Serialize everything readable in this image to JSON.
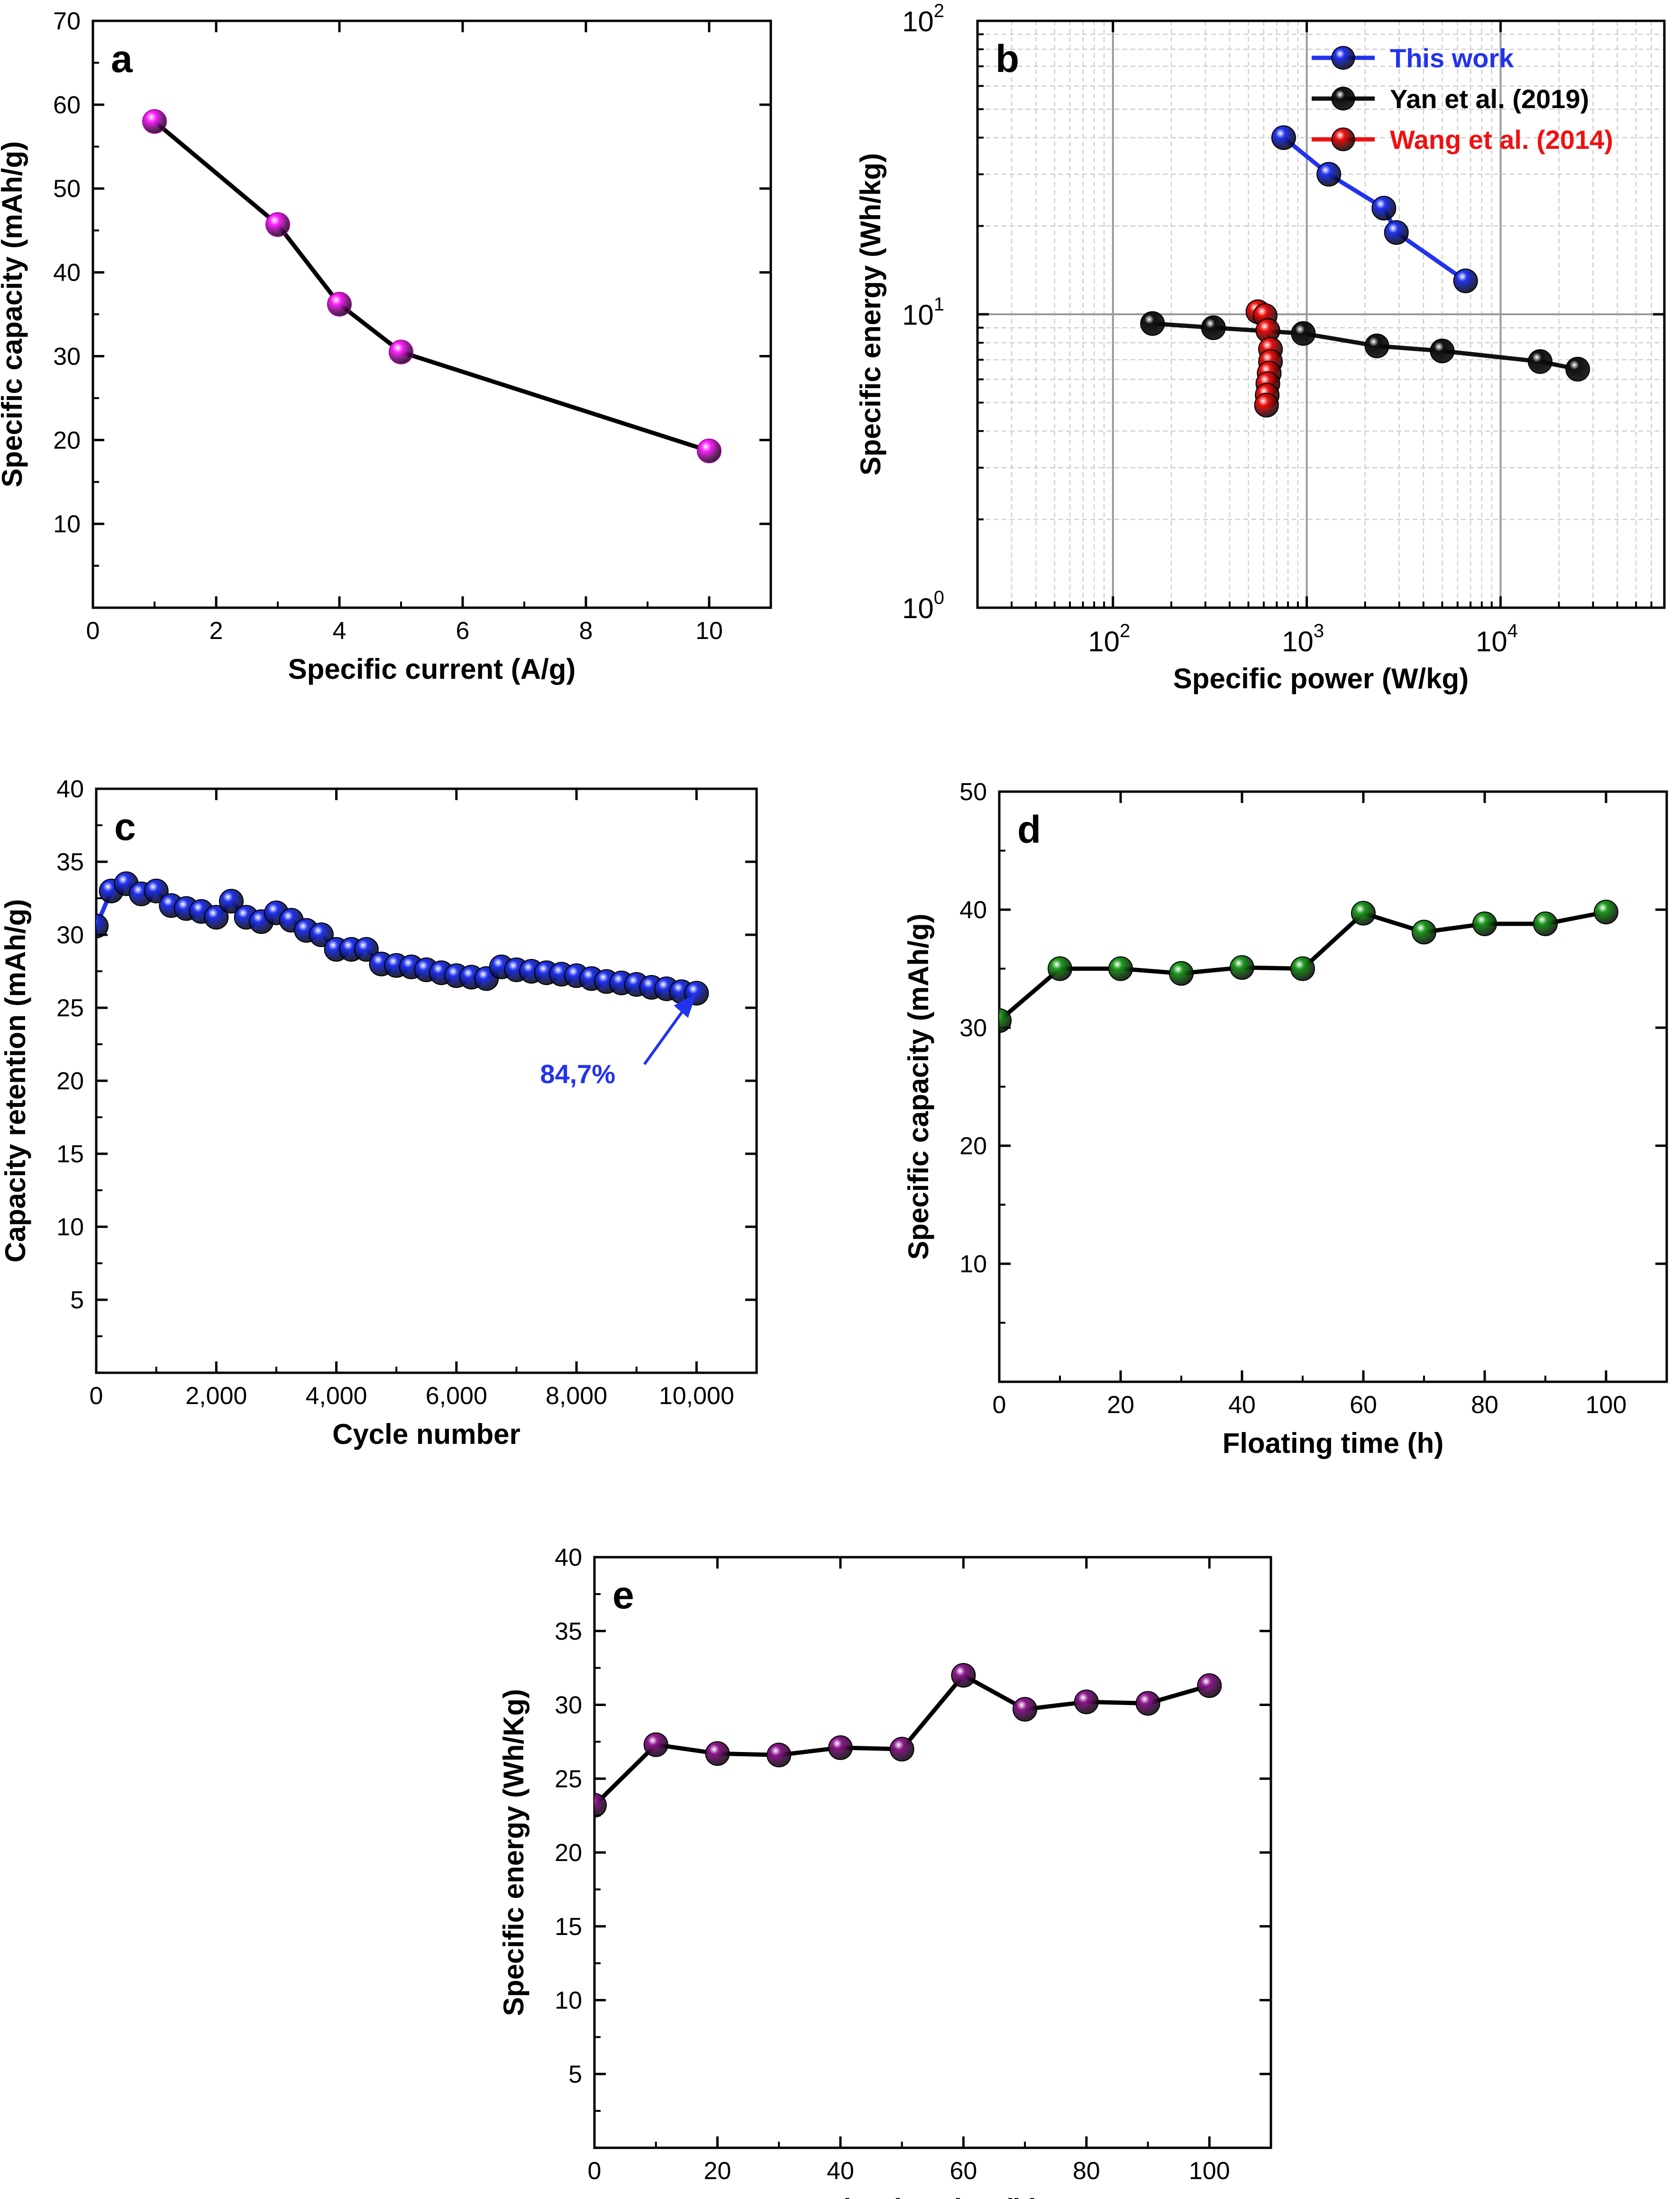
{
  "chart_data": [
    {
      "id": "a",
      "type": "line",
      "panel_label": "a",
      "xlabel": "Specific current (A/g)",
      "ylabel": "Specific capacity (mAh/g)",
      "xlim": [
        0,
        11
      ],
      "ylim": [
        0,
        70
      ],
      "xticks": [
        0,
        2,
        4,
        6,
        8,
        10
      ],
      "yticks": [
        10,
        20,
        30,
        40,
        50,
        60,
        70
      ],
      "grid": false,
      "series": [
        {
          "name": "",
          "color": "#ff22ff",
          "line_color": "#000000",
          "x": [
            1,
            3,
            4,
            5,
            10
          ],
          "values": [
            58,
            45.7,
            36.2,
            30.5,
            18.7
          ]
        }
      ]
    },
    {
      "id": "b",
      "type": "scatter",
      "panel_label": "b",
      "xlabel": "Specific power (W/kg)",
      "ylabel": "Specific energy (Wh/kg)",
      "xscale": "log",
      "yscale": "log",
      "xlim": [
        20,
        70000
      ],
      "ylim": [
        1,
        100
      ],
      "xticks": [
        100,
        1000,
        10000
      ],
      "xtick_labels": [
        {
          "base": "10",
          "exp": "2"
        },
        {
          "base": "10",
          "exp": "3"
        },
        {
          "base": "10",
          "exp": "4"
        }
      ],
      "yticks": [
        1,
        10,
        100
      ],
      "ytick_labels": [
        {
          "base": "10",
          "exp": "0"
        },
        {
          "base": "10",
          "exp": "1"
        },
        {
          "base": "10",
          "exp": "2"
        }
      ],
      "grid": true,
      "legend_position": "top-right",
      "series": [
        {
          "name": "This work",
          "color": "#2233ee",
          "line_color": "#2233ee",
          "x": [
            760,
            1300,
            2500,
            2900,
            6600
          ],
          "values": [
            40,
            30,
            23,
            19,
            13
          ]
        },
        {
          "name": "Yan et al. (2019)",
          "color": "#111111",
          "line_color": "#111111",
          "x": [
            160,
            330,
            960,
            2300,
            5000,
            16000,
            25000
          ],
          "values": [
            9.3,
            9.0,
            8.6,
            7.8,
            7.5,
            6.9,
            6.5
          ]
        },
        {
          "name": "Wang et al. (2014)",
          "color": "#ee1111",
          "line_color": "#ee1111",
          "x": [
            560,
            610,
            630,
            650,
            650,
            640,
            630,
            625,
            620
          ],
          "values": [
            10.2,
            9.9,
            8.8,
            7.6,
            6.9,
            6.3,
            5.8,
            5.3,
            4.9
          ]
        }
      ]
    },
    {
      "id": "c",
      "type": "line",
      "panel_label": "c",
      "xlabel": "Cycle number",
      "ylabel": "Capacity retention (mAh/g)",
      "xlim": [
        0,
        11000
      ],
      "ylim": [
        0,
        40
      ],
      "xticks": [
        0,
        2000,
        4000,
        6000,
        8000,
        10000
      ],
      "xtick_labels": [
        "0",
        "2,000",
        "4,000",
        "6,000",
        "8,000",
        "10,000"
      ],
      "yticks": [
        5,
        10,
        15,
        20,
        25,
        30,
        35,
        40
      ],
      "grid": false,
      "annotation": {
        "text": "84,7%",
        "color": "#2233ee",
        "arrow_to": [
          10000,
          26
        ]
      },
      "series": [
        {
          "name": "",
          "color": "#2233ee",
          "line_color": "#2233ee",
          "x": [
            0,
            250,
            500,
            750,
            1000,
            1250,
            1500,
            1750,
            2000,
            2250,
            2500,
            2750,
            3000,
            3250,
            3500,
            3750,
            4000,
            4250,
            4500,
            4750,
            5000,
            5250,
            5500,
            5750,
            6000,
            6250,
            6500,
            6750,
            7000,
            7250,
            7500,
            7750,
            8000,
            8250,
            8500,
            8750,
            9000,
            9250,
            9500,
            9750,
            10000
          ],
          "values": [
            30.6,
            33.0,
            33.5,
            32.8,
            33.0,
            32.0,
            31.8,
            31.6,
            31.2,
            32.3,
            31.2,
            30.9,
            31.5,
            31.0,
            30.3,
            30.0,
            29.0,
            29.0,
            29.0,
            28.0,
            27.9,
            27.8,
            27.6,
            27.4,
            27.2,
            27.1,
            27.0,
            27.8,
            27.6,
            27.5,
            27.4,
            27.3,
            27.2,
            27.0,
            26.8,
            26.7,
            26.6,
            26.4,
            26.3,
            26.1,
            26.0
          ]
        }
      ]
    },
    {
      "id": "d",
      "type": "line",
      "panel_label": "d",
      "xlabel": "Floating time (h)",
      "ylabel": "Specific capacity (mAh/g)",
      "xlim": [
        0,
        110
      ],
      "ylim": [
        0,
        50
      ],
      "xticks": [
        0,
        20,
        40,
        60,
        80,
        100
      ],
      "yticks": [
        10,
        20,
        30,
        40,
        50
      ],
      "grid": false,
      "series": [
        {
          "name": "",
          "color": "#1f9a1f",
          "line_color": "#000000",
          "x": [
            0,
            10,
            20,
            30,
            40,
            50,
            60,
            70,
            80,
            90,
            100
          ],
          "values": [
            30.6,
            35.0,
            35.0,
            34.6,
            35.1,
            35.0,
            39.7,
            38.1,
            38.8,
            38.8,
            39.8
          ]
        }
      ]
    },
    {
      "id": "e",
      "type": "line",
      "panel_label": "e",
      "xlabel": "Floating time(h)",
      "ylabel": "Specific energy (Wh/Kg)",
      "xlim": [
        0,
        110
      ],
      "ylim": [
        0,
        40
      ],
      "xticks": [
        0,
        20,
        40,
        60,
        80,
        100
      ],
      "yticks": [
        5,
        10,
        15,
        20,
        25,
        30,
        35,
        40
      ],
      "grid": false,
      "series": [
        {
          "name": "",
          "color": "#8e1a8e",
          "line_color": "#000000",
          "x": [
            0,
            10,
            20,
            30,
            40,
            50,
            60,
            70,
            80,
            90,
            100
          ],
          "values": [
            23.2,
            27.3,
            26.7,
            26.6,
            27.1,
            27.0,
            32.0,
            29.7,
            30.2,
            30.1,
            31.3
          ]
        }
      ]
    }
  ]
}
